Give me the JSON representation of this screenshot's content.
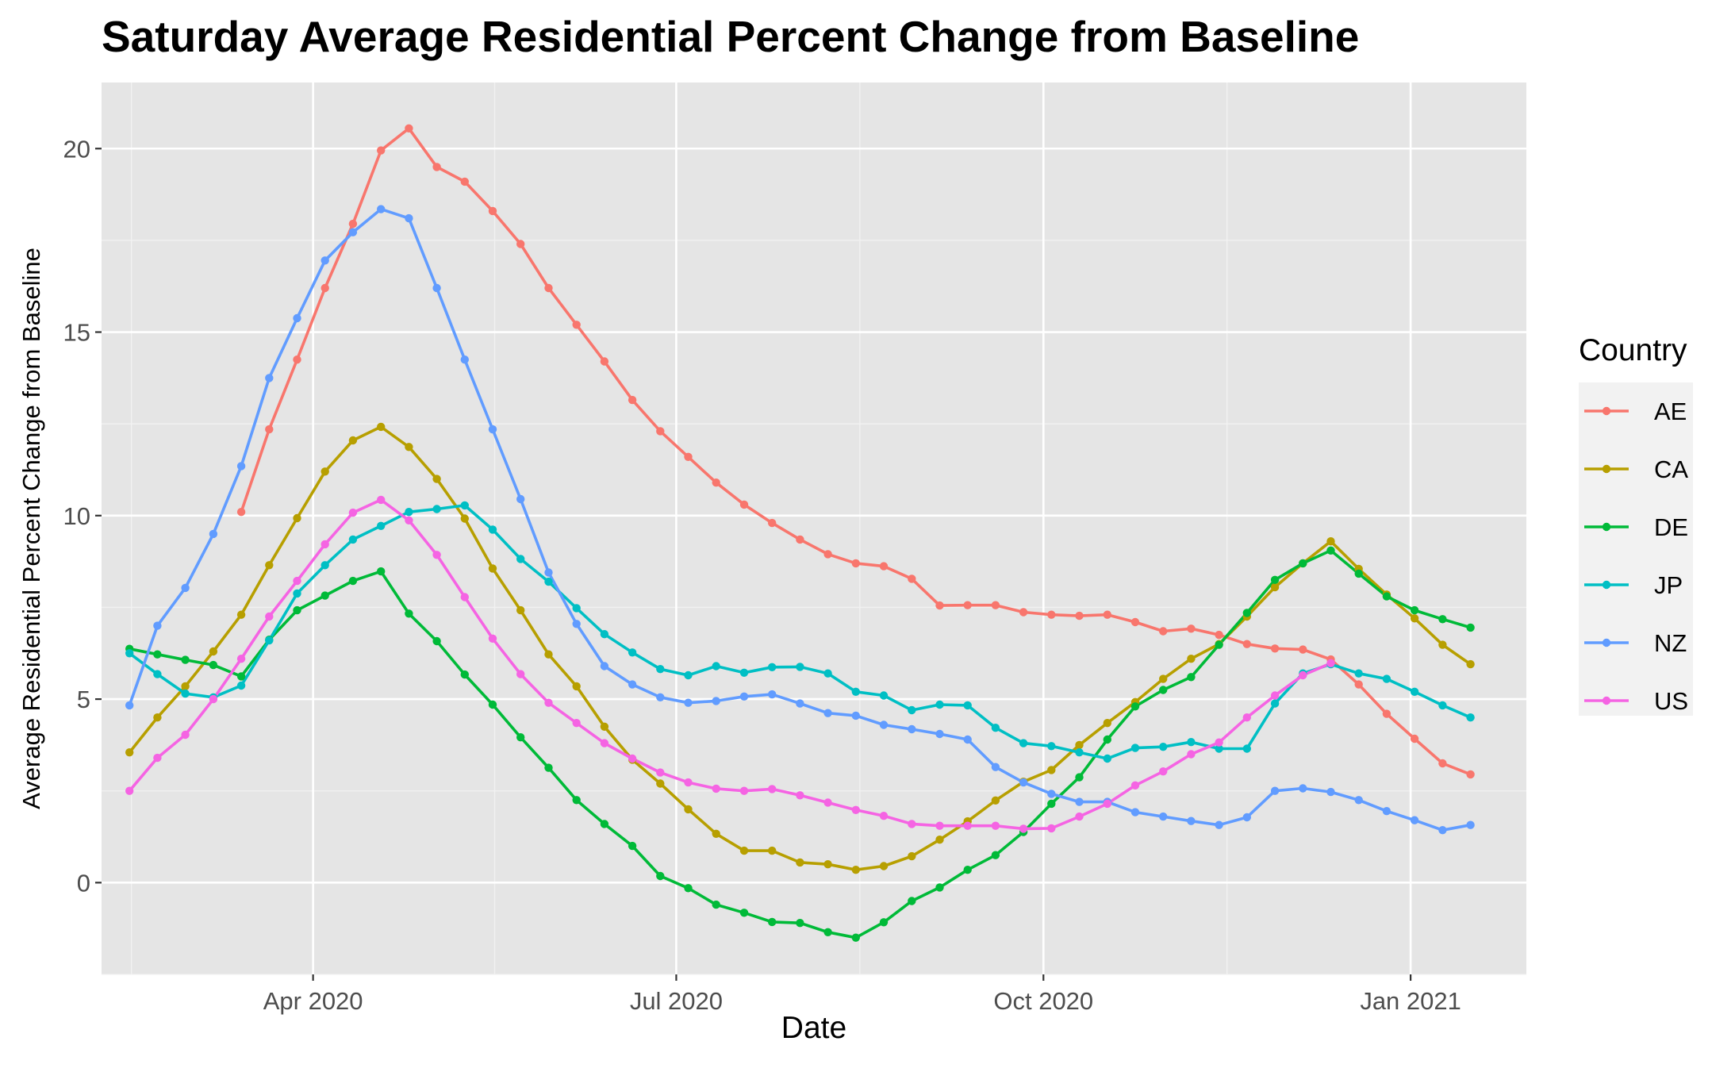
{
  "chart_data": {
    "type": "line",
    "title": "Saturday Average Residential Percent Change from Baseline",
    "xlabel": "Date",
    "ylabel": "Average Residential Percent Change from Baseline",
    "x_ticks": [
      "2020-04-01",
      "2020-07-01",
      "2020-10-01",
      "2021-01-01"
    ],
    "x_tick_labels": [
      "Apr 2020",
      "Jul 2020",
      "Oct 2020",
      "Jan 2021"
    ],
    "y_ticks": [
      0,
      5,
      10,
      15,
      20
    ],
    "y_tick_labels": [
      "0",
      "5",
      "10",
      "15",
      "20"
    ],
    "xlim": [
      "2020-02-08",
      "2021-01-30"
    ],
    "ylim": [
      -2.5,
      21.8
    ],
    "grid": true,
    "legend_title": "Country",
    "legend_position": "right",
    "x": [
      "2020-02-15",
      "2020-02-22",
      "2020-02-29",
      "2020-03-07",
      "2020-03-14",
      "2020-03-21",
      "2020-03-28",
      "2020-04-04",
      "2020-04-11",
      "2020-04-18",
      "2020-04-25",
      "2020-05-02",
      "2020-05-09",
      "2020-05-16",
      "2020-05-23",
      "2020-05-30",
      "2020-06-06",
      "2020-06-13",
      "2020-06-20",
      "2020-06-27",
      "2020-07-04",
      "2020-07-11",
      "2020-07-18",
      "2020-07-25",
      "2020-08-01",
      "2020-08-08",
      "2020-08-15",
      "2020-08-22",
      "2020-08-29",
      "2020-09-05",
      "2020-09-12",
      "2020-09-19",
      "2020-09-26",
      "2020-10-03",
      "2020-10-10",
      "2020-10-17",
      "2020-10-24",
      "2020-10-31",
      "2020-11-07",
      "2020-11-14",
      "2020-11-21",
      "2020-11-28",
      "2020-12-05",
      "2020-12-12",
      "2020-12-19",
      "2020-12-26",
      "2021-01-02",
      "2021-01-09",
      "2021-01-16"
    ],
    "series": [
      {
        "name": "AE",
        "color": "#F8766D",
        "values": [
          null,
          null,
          null,
          null,
          10.1,
          12.35,
          14.25,
          16.2,
          17.95,
          19.95,
          20.55,
          19.5,
          19.1,
          18.3,
          17.4,
          16.2,
          15.2,
          14.2,
          13.15,
          12.3,
          11.6,
          10.9,
          10.3,
          9.8,
          9.35,
          8.95,
          8.7,
          8.62,
          8.28,
          7.55,
          7.56,
          7.56,
          7.37,
          7.3,
          7.27,
          7.3,
          7.1,
          6.85,
          6.92,
          6.75,
          6.5,
          6.38,
          6.35,
          6.08,
          5.4,
          4.6,
          3.92,
          3.25,
          2.95
        ]
      },
      {
        "name": "CA",
        "color": "#B79F00",
        "values": [
          3.55,
          4.5,
          5.35,
          6.3,
          7.3,
          8.65,
          9.93,
          11.2,
          12.05,
          12.42,
          11.87,
          11.0,
          9.92,
          8.56,
          7.42,
          6.22,
          5.35,
          4.25,
          3.35,
          2.7,
          2.0,
          1.33,
          0.87,
          0.87,
          0.55,
          0.5,
          0.35,
          0.45,
          0.72,
          1.17,
          1.67,
          2.24,
          2.75,
          3.07,
          3.75,
          4.35,
          4.92,
          5.55,
          6.1,
          6.5,
          7.25,
          8.05,
          8.7,
          9.3,
          8.55,
          7.85,
          7.2,
          6.48,
          5.95
        ]
      },
      {
        "name": "DE",
        "color": "#00BA38",
        "values": [
          6.37,
          6.22,
          6.07,
          5.93,
          5.62,
          6.62,
          7.42,
          7.82,
          8.22,
          8.48,
          7.33,
          6.58,
          5.67,
          4.85,
          3.96,
          3.13,
          2.25,
          1.6,
          1.0,
          0.18,
          -0.15,
          -0.6,
          -0.82,
          -1.07,
          -1.1,
          -1.35,
          -1.5,
          -1.08,
          -0.5,
          -0.13,
          0.35,
          0.75,
          1.38,
          2.15,
          2.87,
          3.9,
          4.8,
          5.25,
          5.6,
          6.48,
          7.35,
          8.25,
          8.7,
          9.05,
          8.42,
          7.8,
          7.42,
          7.18,
          6.95
        ]
      },
      {
        "name": "JP",
        "color": "#00BFC4",
        "values": [
          6.25,
          5.68,
          5.15,
          5.05,
          5.37,
          6.6,
          7.88,
          8.65,
          9.35,
          9.72,
          10.1,
          10.18,
          10.28,
          9.62,
          8.82,
          8.2,
          7.48,
          6.77,
          6.27,
          5.82,
          5.65,
          5.9,
          5.72,
          5.87,
          5.88,
          5.7,
          5.2,
          5.1,
          4.7,
          4.85,
          4.83,
          4.22,
          3.8,
          3.72,
          3.55,
          3.38,
          3.67,
          3.7,
          3.83,
          3.65,
          3.65,
          4.88,
          5.7,
          5.95,
          5.7,
          5.55,
          5.2,
          4.83,
          4.5
        ]
      },
      {
        "name": "NZ",
        "color": "#619CFF",
        "values": [
          4.83,
          7.0,
          8.03,
          9.5,
          11.35,
          13.75,
          15.38,
          16.95,
          17.72,
          18.35,
          18.1,
          16.2,
          14.25,
          12.35,
          10.45,
          8.45,
          7.05,
          5.9,
          5.4,
          5.05,
          4.9,
          4.95,
          5.07,
          5.13,
          4.88,
          4.62,
          4.55,
          4.3,
          4.18,
          4.05,
          3.9,
          3.15,
          2.73,
          2.42,
          2.2,
          2.2,
          1.92,
          1.8,
          1.68,
          1.57,
          1.78,
          2.5,
          2.57,
          2.47,
          2.25,
          1.95,
          1.7,
          1.43,
          1.57
        ]
      },
      {
        "name": "US",
        "color": "#F564E3",
        "values": [
          2.5,
          3.4,
          4.03,
          5.0,
          6.1,
          7.25,
          8.22,
          9.22,
          10.08,
          10.43,
          9.87,
          8.93,
          7.78,
          6.65,
          5.68,
          4.9,
          4.35,
          3.8,
          3.38,
          3.0,
          2.73,
          2.56,
          2.5,
          2.55,
          2.38,
          2.18,
          1.98,
          1.82,
          1.6,
          1.55,
          1.55,
          1.55,
          1.47,
          1.48,
          1.8,
          2.15,
          2.65,
          3.03,
          3.5,
          3.82,
          4.5,
          5.1,
          5.65,
          5.98,
          null,
          null,
          null,
          null,
          null
        ]
      }
    ]
  }
}
